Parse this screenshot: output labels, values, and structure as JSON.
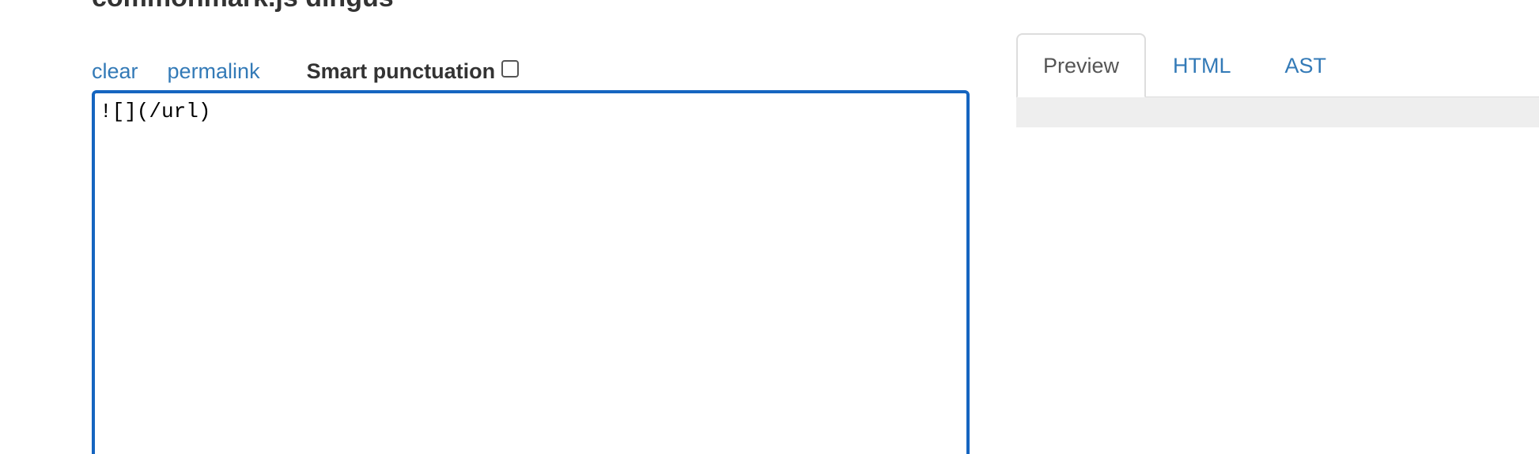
{
  "page": {
    "title": "commonmark.js dingus"
  },
  "toolbar": {
    "clear_label": "clear",
    "permalink_label": "permalink",
    "smart_punctuation_label": "Smart punctuation",
    "smart_punctuation_checked": false
  },
  "editor": {
    "value": "![](/url)"
  },
  "tabs": [
    {
      "label": "Preview",
      "active": true
    },
    {
      "label": "HTML",
      "active": false
    },
    {
      "label": "AST",
      "active": false
    }
  ],
  "colors": {
    "link": "#337ab7",
    "editor_border": "#1565c0",
    "tab_border": "#dddddd",
    "preview_bg": "#eeeeee"
  }
}
